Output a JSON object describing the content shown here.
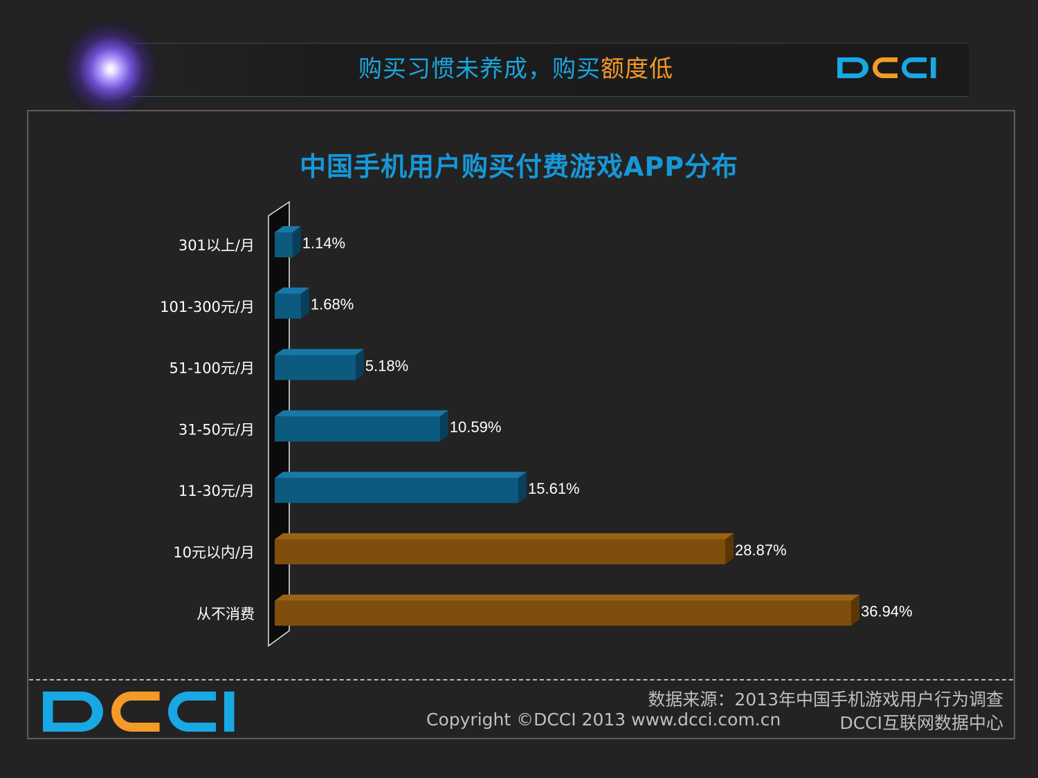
{
  "header": {
    "title_part1": "购买习惯未养成，购买",
    "title_part2": "额度低",
    "logo_text": "DCCI"
  },
  "colors": {
    "header_title": "#1aa6e0",
    "header_accent": "#f39a28",
    "logo_blue": "#18a8e4",
    "logo_orange": "#f39a28",
    "bar_blue": "#0d5a80",
    "bar_orange": "#7f4e0c",
    "chart_title": "#1797d8"
  },
  "chart_data": {
    "type": "bar",
    "orientation": "horizontal",
    "title": "中国手机用户购买付费游戏APP分布",
    "categories": [
      "301以上/月",
      "101-300元/月",
      "51-100元/月",
      "31-50元/月",
      "11-30元/月",
      "10元以内/月",
      "从不消费"
    ],
    "values": [
      1.14,
      1.68,
      5.18,
      10.59,
      15.61,
      28.87,
      36.94
    ],
    "value_labels": [
      "1.14%",
      "1.68%",
      "5.18%",
      "10.59%",
      "15.61%",
      "28.87%",
      "36.94%"
    ],
    "bar_colors": [
      "blue",
      "blue",
      "blue",
      "blue",
      "blue",
      "orange",
      "orange"
    ],
    "unit": "%",
    "grid": false,
    "legend": "none",
    "style": "3d"
  },
  "footer": {
    "source": "数据来源：2013年中国手机游戏用户行为调查",
    "copyright": "Copyright ©DCCI 2013 www.dcci.com.cn",
    "org": "DCCI互联网数据中心",
    "logo_text": "DCCI"
  }
}
